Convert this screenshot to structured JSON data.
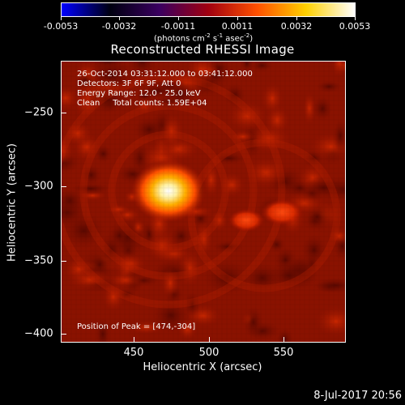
{
  "colorbar": {
    "tick_labels": [
      "-0.0053",
      "-0.0032",
      "-0.0011",
      "0.0011",
      "0.0032",
      "0.0053"
    ],
    "units_prefix": "(photons cm",
    "units_exp1": "-2",
    "units_mid": " s",
    "units_exp2": "-1",
    "units_mid2": " asec",
    "units_exp3": "-2",
    "units_suffix": ")",
    "gradient_colors": [
      "#0000ff",
      "#000010",
      "#3a0060",
      "#a00010",
      "#ff5000",
      "#ffd000",
      "#ffffff"
    ]
  },
  "plot": {
    "title": "Reconstructed RHESSI Image",
    "info_lines": [
      "26-Oct-2014 03:31:12.000 to 03:41:12.000",
      "Detectors: 3F 6F 9F, Att 0",
      "Energy Range: 12.0 - 25.0 keV",
      "Clean     Total counts: 1.59E+04"
    ],
    "peak_text": "Position of Peak = [474,-304]",
    "peak_x": 474,
    "peak_y": -304
  },
  "axes": {
    "x_title": "Heliocentric X (arcsec)",
    "y_title": "Heliocentric Y (arcsec)",
    "x_ticks": [
      450,
      500,
      550
    ],
    "y_ticks": [
      -250,
      -300,
      -350,
      -400
    ],
    "x_tick_labels": [
      "450",
      "500",
      "550"
    ],
    "y_tick_labels": [
      "−250",
      "−300",
      "−350",
      "−400"
    ]
  },
  "footer": {
    "timestamp": "8-Jul-2017 20:56"
  }
}
